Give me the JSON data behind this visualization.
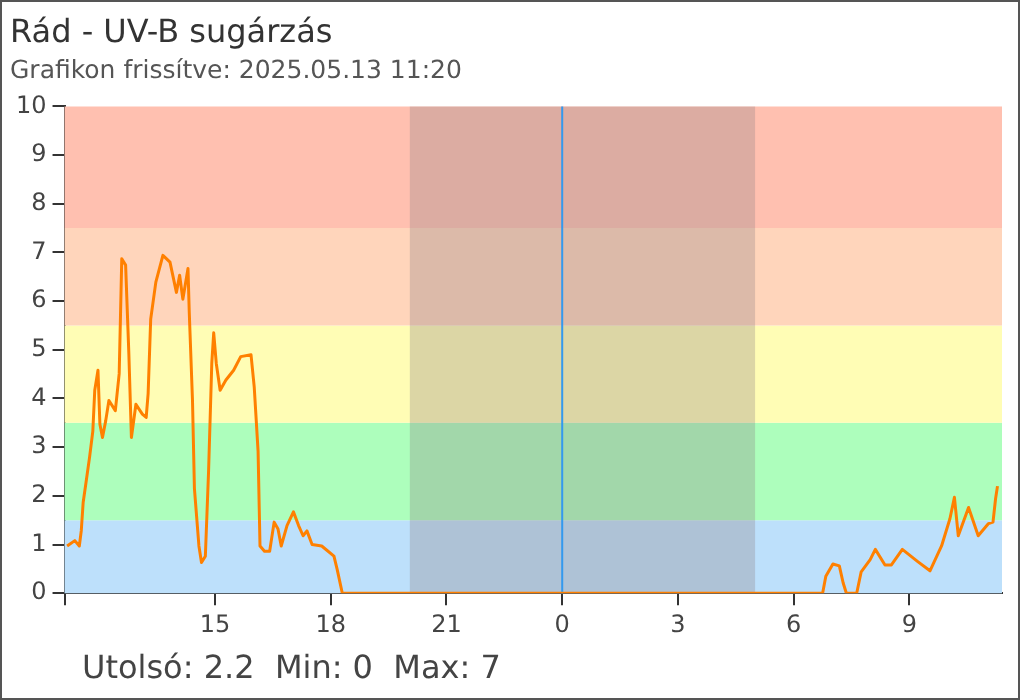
{
  "chart_data": {
    "type": "line",
    "title": "Rád - UV-B sugárzás",
    "subtitle": "Grafikon frissítve: 2025.05.13 11:20",
    "annotations": [
      "Utolsó: 2.2  Min: 0  Max: 7"
    ],
    "series": [
      {
        "color": "#ff8000",
        "x": [
          "2025-05-12T11:10",
          "2025-05-12T11:22",
          "2025-05-12T11:29",
          "2025-05-12T11:32",
          "2025-05-12T11:35",
          "2025-05-12T11:40",
          "2025-05-12T11:45",
          "2025-05-12T11:50",
          "2025-05-12T11:53",
          "2025-05-12T11:58",
          "2025-05-12T12:01",
          "2025-05-12T12:05",
          "2025-05-12T12:10",
          "2025-05-12T12:15",
          "2025-05-12T12:25",
          "2025-05-12T12:31",
          "2025-05-12T12:35",
          "2025-05-12T12:41",
          "2025-05-12T12:46",
          "2025-05-12T12:50",
          "2025-05-12T12:57",
          "2025-05-12T13:07",
          "2025-05-12T13:13",
          "2025-05-12T13:16",
          "2025-05-12T13:20",
          "2025-05-12T13:28",
          "2025-05-12T13:39",
          "2025-05-12T13:50",
          "2025-05-12T14:00",
          "2025-05-12T14:05",
          "2025-05-12T14:10",
          "2025-05-12T14:18",
          "2025-05-12T14:20",
          "2025-05-12T14:25",
          "2025-05-12T14:28",
          "2025-05-12T14:35",
          "2025-05-12T14:39",
          "2025-05-12T14:45",
          "2025-05-12T14:50",
          "2025-05-12T14:55",
          "2025-05-12T14:58",
          "2025-05-12T15:02",
          "2025-05-12T15:08",
          "2025-05-12T15:17",
          "2025-05-12T15:29",
          "2025-05-12T15:40",
          "2025-05-12T15:56",
          "2025-05-12T16:01",
          "2025-05-12T16:07",
          "2025-05-12T16:10",
          "2025-05-12T16:17",
          "2025-05-12T16:25",
          "2025-05-12T16:32",
          "2025-05-12T16:38",
          "2025-05-12T16:43",
          "2025-05-12T16:52",
          "2025-05-12T17:02",
          "2025-05-12T17:10",
          "2025-05-12T17:17",
          "2025-05-12T17:23",
          "2025-05-12T17:31",
          "2025-05-12T17:46",
          "2025-05-12T18:05",
          "2025-05-12T18:10",
          "2025-05-12T18:18",
          "2025-05-13T06:45",
          "2025-05-13T06:50",
          "2025-05-13T07:01",
          "2025-05-13T07:11",
          "2025-05-13T07:17",
          "2025-05-13T07:22",
          "2025-05-13T07:38",
          "2025-05-13T07:45",
          "2025-05-13T07:59",
          "2025-05-13T08:07",
          "2025-05-13T08:22",
          "2025-05-13T08:32",
          "2025-05-13T08:49",
          "2025-05-13T09:13",
          "2025-05-13T09:32",
          "2025-05-13T09:50",
          "2025-05-13T10:03",
          "2025-05-13T10:10",
          "2025-05-13T10:16",
          "2025-05-13T10:32",
          "2025-05-13T10:47",
          "2025-05-13T11:03",
          "2025-05-13T11:10",
          "2025-05-13T11:14",
          "2025-05-13T11:17"
        ],
        "values": [
          0.97,
          1.08,
          0.97,
          1.28,
          1.87,
          2.33,
          2.8,
          3.33,
          4.17,
          4.58,
          3.47,
          3.2,
          3.54,
          3.96,
          3.75,
          4.51,
          6.87,
          6.74,
          4.93,
          3.2,
          3.88,
          3.68,
          3.61,
          4.1,
          5.63,
          6.39,
          6.94,
          6.8,
          6.18,
          6.53,
          6.04,
          6.67,
          5.76,
          3.96,
          2.15,
          0.97,
          0.63,
          0.76,
          2.5,
          4.72,
          5.35,
          4.72,
          4.17,
          4.38,
          4.58,
          4.86,
          4.9,
          4.24,
          2.92,
          0.97,
          0.86,
          0.86,
          1.46,
          1.32,
          0.97,
          1.39,
          1.67,
          1.39,
          1.18,
          1.28,
          1.0,
          0.97,
          0.76,
          0.49,
          0,
          0,
          0.35,
          0.6,
          0.56,
          0.21,
          0,
          0,
          0.44,
          0.69,
          0.9,
          0.58,
          0.58,
          0.9,
          0.65,
          0.46,
          0.97,
          1.53,
          1.97,
          1.18,
          1.76,
          1.18,
          1.43,
          1.46,
          1.94,
          2.2
        ]
      }
    ],
    "xlim": [
      "2025-05-12T11:06",
      "2025-05-13T11:24"
    ],
    "xticks": [
      {
        "value": "2025-05-12T11:06",
        "label": null
      },
      {
        "value": "2025-05-12T15:00",
        "label": "15"
      },
      {
        "value": "2025-05-12T18:00",
        "label": "18"
      },
      {
        "value": "2025-05-12T21:00",
        "label": "21"
      },
      {
        "value": "2025-05-13T00:00",
        "label": "0"
      },
      {
        "value": "2025-05-13T03:00",
        "label": "3"
      },
      {
        "value": "2025-05-13T06:00",
        "label": "6"
      },
      {
        "value": "2025-05-13T09:00",
        "label": "9"
      }
    ],
    "ylim": [
      0,
      10
    ],
    "yticks": [
      0,
      1,
      2,
      3,
      4,
      5,
      6,
      7,
      8,
      9,
      10
    ],
    "bands": [
      {
        "axis": "y",
        "from": 0,
        "to": 1.5,
        "color": "#bde0fb"
      },
      {
        "axis": "y",
        "from": 1.5,
        "to": 3.5,
        "color": "#adfebc"
      },
      {
        "axis": "y",
        "from": 3.5,
        "to": 5.5,
        "color": "#fffdb5"
      },
      {
        "axis": "y",
        "from": 5.5,
        "to": 7.5,
        "color": "#ffd5bb"
      },
      {
        "axis": "y",
        "from": 7.5,
        "to": 10,
        "color": "#ffc0b0"
      },
      {
        "axis": "x",
        "from": "2025-05-12T20:03",
        "to": "2025-05-13T05:00",
        "color": "#8c7f80"
      }
    ],
    "ref_lines": [
      {
        "axis": "x",
        "value": "2025-05-13T00:00",
        "color": "#3399ee"
      }
    ],
    "grid": false,
    "legend": false,
    "marker": "none",
    "line_style": "solid"
  }
}
